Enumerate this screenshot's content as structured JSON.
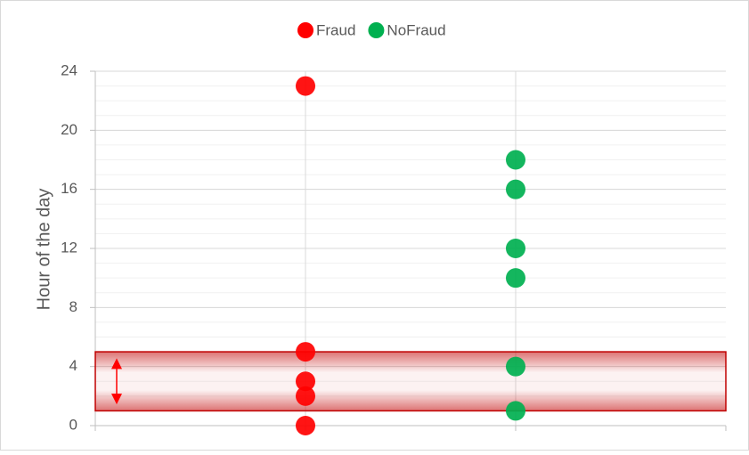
{
  "chart_data": {
    "type": "scatter",
    "series": [
      {
        "name": "Fraud",
        "color": "#ff0000",
        "x": [
          1,
          1,
          1,
          1,
          1
        ],
        "values": [
          23,
          5,
          3,
          2,
          0
        ]
      },
      {
        "name": "NoFraud",
        "color": "#00b050",
        "x": [
          2,
          2,
          2,
          2,
          2,
          2
        ],
        "values": [
          18,
          16,
          12,
          10,
          4,
          1
        ]
      }
    ],
    "ylabel": "Hour of the day",
    "xlim": [
      0,
      3
    ],
    "xticks": [
      0,
      1,
      2,
      3
    ],
    "ylim": [
      0,
      24
    ],
    "yticks": [
      0,
      4,
      8,
      12,
      16,
      20,
      24
    ],
    "minor_grid_step": 1,
    "grid": true,
    "legend": "top",
    "highlight_band": [
      1,
      5
    ],
    "highlight_color": "#c00000"
  }
}
